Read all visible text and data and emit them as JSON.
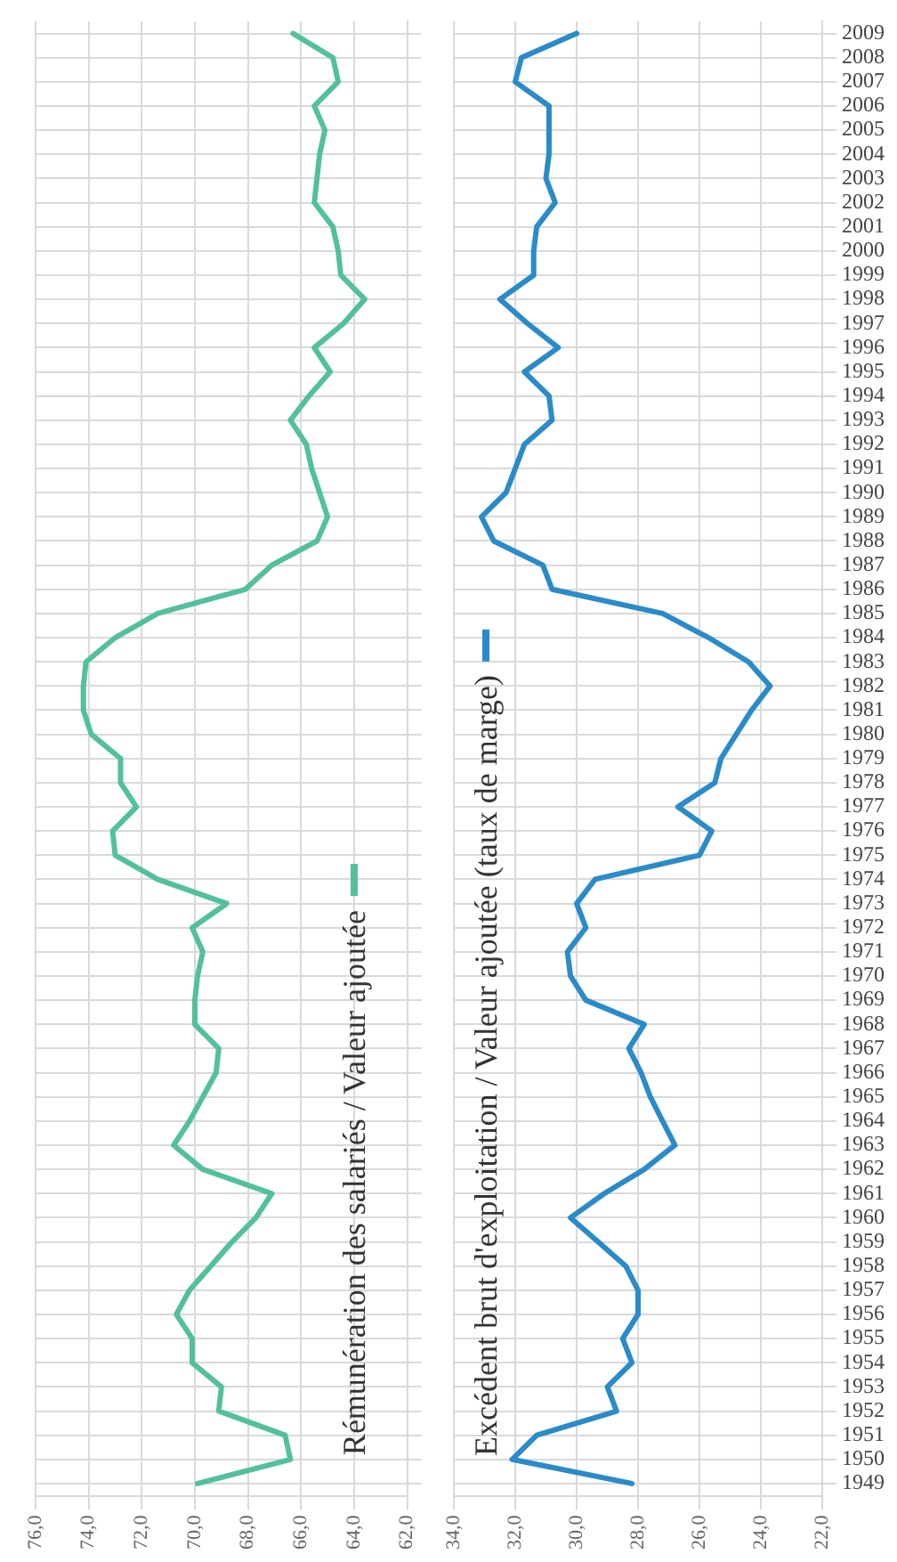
{
  "chart_data": [
    {
      "type": "line",
      "orientation": "horizontal",
      "categories": [
        "2009",
        "2008",
        "2007",
        "2006",
        "2005",
        "2004",
        "2003",
        "2002",
        "2001",
        "2000",
        "1999",
        "1998",
        "1997",
        "1996",
        "1995",
        "1994",
        "1993",
        "1992",
        "1991",
        "1990",
        "1989",
        "1988",
        "1987",
        "1986",
        "1985",
        "1984",
        "1983",
        "1982",
        "1981",
        "1980",
        "1979",
        "1978",
        "1977",
        "1976",
        "1975",
        "1974",
        "1973",
        "1972",
        "1971",
        "1970",
        "1969",
        "1968",
        "1967",
        "1966",
        "1965",
        "1964",
        "1963",
        "1962",
        "1961",
        "1960",
        "1959",
        "1958",
        "1957",
        "1956",
        "1955",
        "1954",
        "1953",
        "1952",
        "1951",
        "1950",
        "1949"
      ],
      "series": [
        {
          "name": "Rémunération des salariés / Valeur ajoutée",
          "color": "#52c09e",
          "values": [
            66.3,
            64.8,
            64.6,
            65.5,
            65.1,
            65.3,
            65.4,
            65.5,
            64.8,
            64.6,
            64.5,
            63.6,
            64.4,
            65.5,
            64.9,
            65.7,
            66.4,
            65.8,
            65.6,
            65.3,
            65.0,
            65.4,
            67.1,
            68.1,
            71.4,
            73.0,
            74.1,
            74.2,
            74.2,
            73.9,
            72.8,
            72.8,
            72.2,
            73.1,
            73.0,
            71.4,
            68.8,
            70.1,
            69.7,
            69.9,
            70.0,
            70.0,
            69.1,
            69.2,
            69.7,
            70.2,
            70.8,
            69.7,
            67.1,
            67.7,
            68.6,
            69.4,
            70.2,
            70.7,
            70.1,
            70.1,
            69.0,
            69.1,
            66.6,
            66.4,
            69.9
          ]
        }
      ],
      "xlim": [
        76,
        62
      ],
      "xticks": [
        {
          "value": 76,
          "label": "76,0"
        },
        {
          "value": 74,
          "label": "74,0"
        },
        {
          "value": 72,
          "label": "72,0"
        },
        {
          "value": 70,
          "label": "70,0"
        },
        {
          "value": 68,
          "label": "68,0"
        },
        {
          "value": 66,
          "label": "66,0"
        },
        {
          "value": 64,
          "label": "64,0"
        },
        {
          "value": 62,
          "label": "62,0"
        }
      ],
      "grid": true,
      "legend": "bottom right",
      "tick_labels": "x",
      "marker": "none"
    },
    {
      "type": "line",
      "orientation": "horizontal",
      "categories": [
        "2009",
        "2008",
        "2007",
        "2006",
        "2005",
        "2004",
        "2003",
        "2002",
        "2001",
        "2000",
        "1999",
        "1998",
        "1997",
        "1996",
        "1995",
        "1994",
        "1993",
        "1992",
        "1991",
        "1990",
        "1989",
        "1988",
        "1987",
        "1986",
        "1985",
        "1984",
        "1983",
        "1982",
        "1981",
        "1980",
        "1979",
        "1978",
        "1977",
        "1976",
        "1975",
        "1974",
        "1973",
        "1972",
        "1971",
        "1970",
        "1969",
        "1968",
        "1967",
        "1966",
        "1965",
        "1964",
        "1963",
        "1962",
        "1961",
        "1960",
        "1959",
        "1958",
        "1957",
        "1956",
        "1955",
        "1954",
        "1953",
        "1952",
        "1951",
        "1950",
        "1949"
      ],
      "series": [
        {
          "name": "Excédent brut d'exploitation / Valeur ajoutée (taux de marge)",
          "color": "#2a8bc9",
          "values": [
            30.0,
            31.8,
            32.0,
            30.9,
            30.9,
            30.9,
            31.0,
            30.7,
            31.3,
            31.4,
            31.4,
            32.5,
            31.6,
            30.6,
            31.7,
            30.9,
            30.8,
            31.7,
            32.0,
            32.3,
            33.1,
            32.7,
            31.1,
            30.8,
            27.2,
            25.7,
            24.4,
            23.7,
            24.3,
            24.8,
            25.3,
            25.5,
            26.7,
            25.6,
            26.0,
            29.4,
            30.0,
            29.7,
            30.3,
            30.2,
            29.7,
            27.8,
            28.3,
            27.9,
            27.6,
            27.2,
            26.8,
            27.8,
            29.1,
            30.2,
            29.3,
            28.4,
            28.0,
            28.0,
            28.5,
            28.2,
            29.0,
            28.7,
            31.3,
            32.1,
            28.2
          ]
        }
      ],
      "xlim": [
        34,
        22
      ],
      "xticks": [
        {
          "value": 34,
          "label": "34,0"
        },
        {
          "value": 32,
          "label": "32,0"
        },
        {
          "value": 30,
          "label": "30,0"
        },
        {
          "value": 28,
          "label": "28,0"
        },
        {
          "value": 26,
          "label": "26,0"
        },
        {
          "value": 24,
          "label": "24,0"
        },
        {
          "value": 22,
          "label": "22,0"
        }
      ],
      "grid": true,
      "legend": "bottom left",
      "marker": "none"
    }
  ]
}
